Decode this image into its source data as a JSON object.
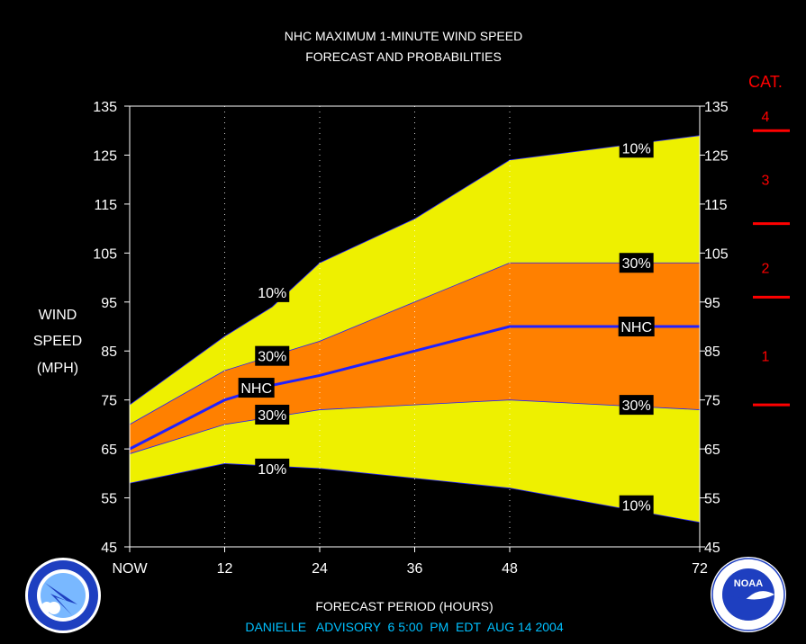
{
  "chart_data": {
    "type": "area",
    "title_line1": "NHC MAXIMUM 1-MINUTE WIND SPEED",
    "title_line2": "FORECAST AND PROBABILITIES",
    "ylabel_lines": [
      "WIND",
      "SPEED",
      "(MPH)"
    ],
    "xlabel": "FORECAST PERIOD (HOURS)",
    "advisory": "DANIELLE   ADVISORY  6 5:00  PM  EDT  AUG 14 2004",
    "ylim": [
      45,
      135
    ],
    "xlim": [
      0,
      72
    ],
    "yticks": [
      45,
      55,
      65,
      75,
      85,
      95,
      105,
      115,
      125,
      135
    ],
    "xticks": [
      {
        "x": 0,
        "label": "NOW"
      },
      {
        "x": 12,
        "label": "12"
      },
      {
        "x": 24,
        "label": "24"
      },
      {
        "x": 36,
        "label": "36"
      },
      {
        "x": 48,
        "label": "48"
      },
      {
        "x": 72,
        "label": "72"
      }
    ],
    "grid_x": [
      12,
      24,
      36,
      48
    ],
    "category_scale": {
      "title": "CAT.",
      "labels": [
        {
          "label": "4",
          "y": 133
        },
        {
          "label": "3",
          "y": 120
        },
        {
          "label": "2",
          "y": 102
        },
        {
          "label": "1",
          "y": 84
        }
      ],
      "boundaries": [
        74,
        96,
        111,
        130
      ]
    },
    "series": [
      {
        "name": "10%",
        "band": "upper_outer",
        "x": [
          0,
          12,
          18,
          24,
          36,
          48,
          72
        ],
        "y": [
          74,
          88,
          94,
          103,
          112,
          124,
          129
        ]
      },
      {
        "name": "30%",
        "band": "upper_inner",
        "x": [
          0,
          12,
          18,
          24,
          36,
          48,
          72
        ],
        "y": [
          70,
          81,
          84,
          87,
          95,
          103,
          103
        ]
      },
      {
        "name": "NHC",
        "band": "forecast",
        "x": [
          0,
          12,
          18,
          24,
          36,
          48,
          72
        ],
        "y": [
          65,
          75,
          78,
          80,
          85,
          90,
          90
        ]
      },
      {
        "name": "30%",
        "band": "lower_inner",
        "x": [
          0,
          12,
          18,
          24,
          36,
          48,
          72
        ],
        "y": [
          64,
          70,
          71.5,
          73,
          74,
          75,
          73
        ]
      },
      {
        "name": "10%",
        "band": "lower_outer",
        "x": [
          0,
          12,
          18,
          24,
          36,
          48,
          72
        ],
        "y": [
          58,
          62,
          61.5,
          61,
          59,
          57,
          50
        ]
      }
    ],
    "band_labels": [
      {
        "text": "10%",
        "x": 18,
        "y": 97
      },
      {
        "text": "30%",
        "x": 18,
        "y": 84
      },
      {
        "text": "NHC",
        "x": 16,
        "y": 77.5
      },
      {
        "text": "30%",
        "x": 18,
        "y": 72
      },
      {
        "text": "10%",
        "x": 18,
        "y": 61
      },
      {
        "text": "10%",
        "x": 64,
        "y": 126.5
      },
      {
        "text": "30%",
        "x": 64,
        "y": 103
      },
      {
        "text": "NHC",
        "x": 64,
        "y": 90
      },
      {
        "text": "30%",
        "x": 64,
        "y": 74
      },
      {
        "text": "10%",
        "x": 64,
        "y": 53.5
      }
    ],
    "colors": {
      "outer_band": "#eef000",
      "inner_band": "#ff8000",
      "forecast_line": "#2020ff",
      "category": "#ff0000",
      "advisory": "#00c0ff",
      "background": "#000000"
    }
  },
  "logos": {
    "left": {
      "name": "nws-logo",
      "text": "NATIONAL WEATHER SERVICE"
    },
    "right": {
      "name": "noaa-logo",
      "text": "NOAA"
    }
  }
}
